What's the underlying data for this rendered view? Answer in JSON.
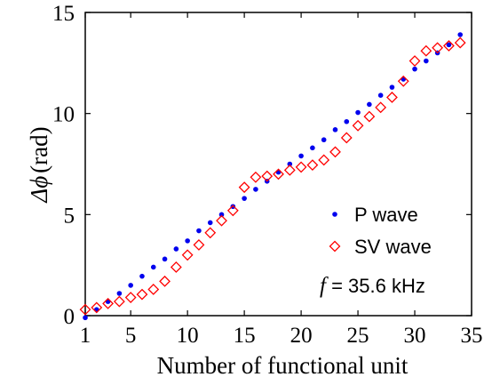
{
  "chart_data": {
    "type": "scatter",
    "title": "",
    "xlabel": "Number of functional unit",
    "ylabel": "Δϕ (rad)",
    "ylabel_symbol": "Δϕ",
    "ylabel_unit": "(rad)",
    "xlim": [
      1,
      35
    ],
    "ylim": [
      0,
      15
    ],
    "xticks": [
      1,
      5,
      10,
      15,
      20,
      25,
      30,
      35
    ],
    "yticks": [
      0,
      5,
      10,
      15
    ],
    "grid": false,
    "legend_position": "right",
    "annotation": {
      "symbol": "f",
      "text": " = 35.6 kHz"
    },
    "series": [
      {
        "name": "P wave",
        "marker": "dot",
        "color": "#0000ee",
        "x": [
          1,
          2,
          3,
          4,
          5,
          6,
          7,
          8,
          9,
          10,
          11,
          12,
          13,
          14,
          15,
          16,
          17,
          18,
          19,
          20,
          21,
          22,
          23,
          24,
          25,
          26,
          27,
          28,
          29,
          30,
          31,
          32,
          33,
          34
        ],
        "y": [
          -0.1,
          0.3,
          0.7,
          1.1,
          1.5,
          1.95,
          2.4,
          2.8,
          3.3,
          3.7,
          4.2,
          4.6,
          5.0,
          5.4,
          5.8,
          6.25,
          6.65,
          7.1,
          7.5,
          7.9,
          8.3,
          8.7,
          9.2,
          9.6,
          10.05,
          10.45,
          10.9,
          11.3,
          11.7,
          12.2,
          12.6,
          13.0,
          13.4,
          13.9
        ]
      },
      {
        "name": "SV wave",
        "marker": "diamond",
        "color": "#ff0000",
        "x": [
          1,
          2,
          3,
          4,
          5,
          6,
          7,
          8,
          9,
          10,
          11,
          12,
          13,
          14,
          15,
          16,
          17,
          18,
          19,
          20,
          21,
          22,
          23,
          24,
          25,
          26,
          27,
          28,
          29,
          30,
          31,
          32,
          33,
          34
        ],
        "y": [
          0.3,
          0.4,
          0.6,
          0.7,
          0.9,
          1.05,
          1.3,
          1.7,
          2.4,
          3.0,
          3.5,
          4.1,
          4.7,
          5.2,
          6.35,
          6.85,
          6.9,
          7.0,
          7.2,
          7.35,
          7.45,
          7.7,
          8.1,
          8.8,
          9.4,
          9.85,
          10.3,
          10.8,
          11.6,
          12.6,
          13.1,
          13.25,
          13.35,
          13.5
        ]
      }
    ]
  }
}
